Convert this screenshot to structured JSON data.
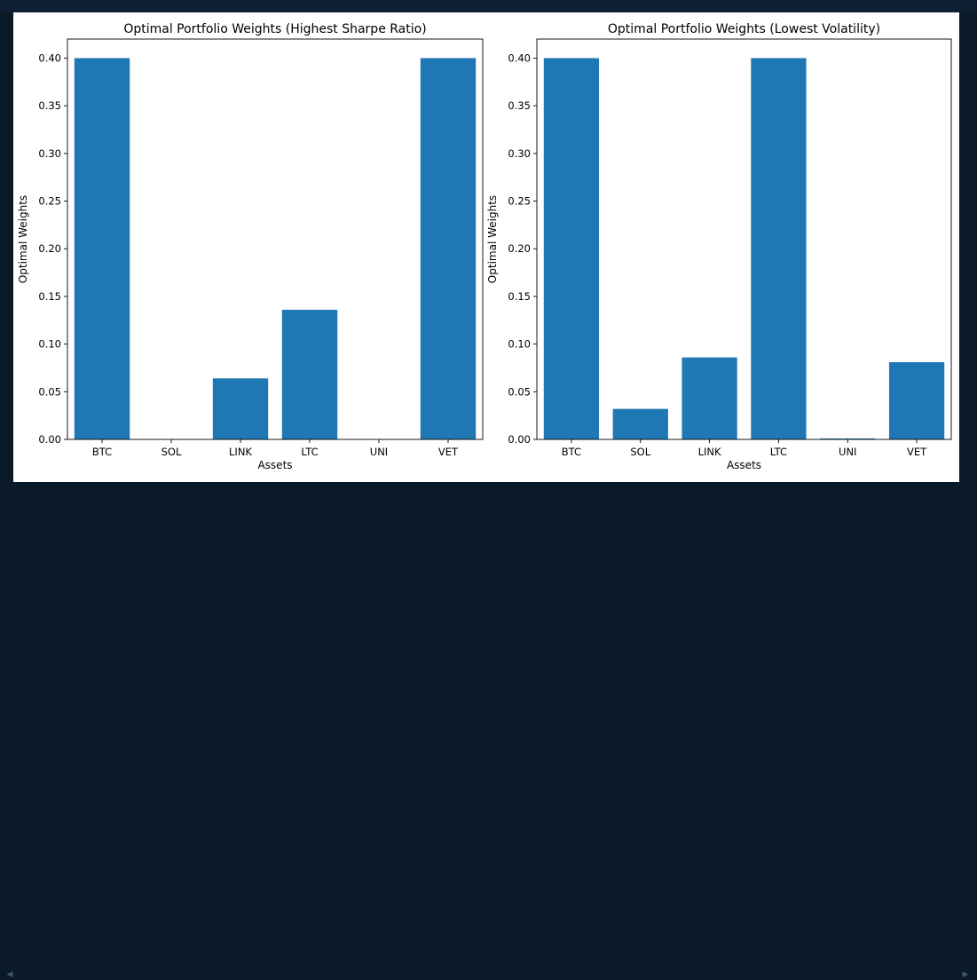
{
  "chart_data": [
    {
      "type": "bar",
      "title": "Optimal Portfolio Weights (Highest Sharpe Ratio)",
      "xlabel": "Assets",
      "ylabel": "Optimal Weights",
      "categories": [
        "BTC",
        "SOL",
        "LINK",
        "LTC",
        "UNI",
        "VET"
      ],
      "values": [
        0.4,
        0.0,
        0.064,
        0.136,
        0.0,
        0.4
      ],
      "ylim": [
        0,
        0.42
      ],
      "yticks": [
        0.0,
        0.05,
        0.1,
        0.15,
        0.2,
        0.25,
        0.3,
        0.35,
        0.4
      ],
      "ytick_labels": [
        "0.00",
        "0.05",
        "0.10",
        "0.15",
        "0.20",
        "0.25",
        "0.30",
        "0.35",
        "0.40"
      ],
      "bar_color": "#1f77b4",
      "grid": false
    },
    {
      "type": "bar",
      "title": "Optimal Portfolio Weights (Lowest Volatility)",
      "xlabel": "Assets",
      "ylabel": "Optimal Weights",
      "categories": [
        "BTC",
        "SOL",
        "LINK",
        "LTC",
        "UNI",
        "VET"
      ],
      "values": [
        0.4,
        0.032,
        0.086,
        0.4,
        0.001,
        0.081
      ],
      "ylim": [
        0,
        0.42
      ],
      "yticks": [
        0.0,
        0.05,
        0.1,
        0.15,
        0.2,
        0.25,
        0.3,
        0.35,
        0.4
      ],
      "ytick_labels": [
        "0.00",
        "0.05",
        "0.10",
        "0.15",
        "0.20",
        "0.25",
        "0.30",
        "0.35",
        "0.40"
      ],
      "bar_color": "#1f77b4",
      "grid": false
    }
  ],
  "colors": {
    "page_background": "#0b1a28",
    "figure_background": "#ffffff",
    "bar": "#1f77b4"
  }
}
